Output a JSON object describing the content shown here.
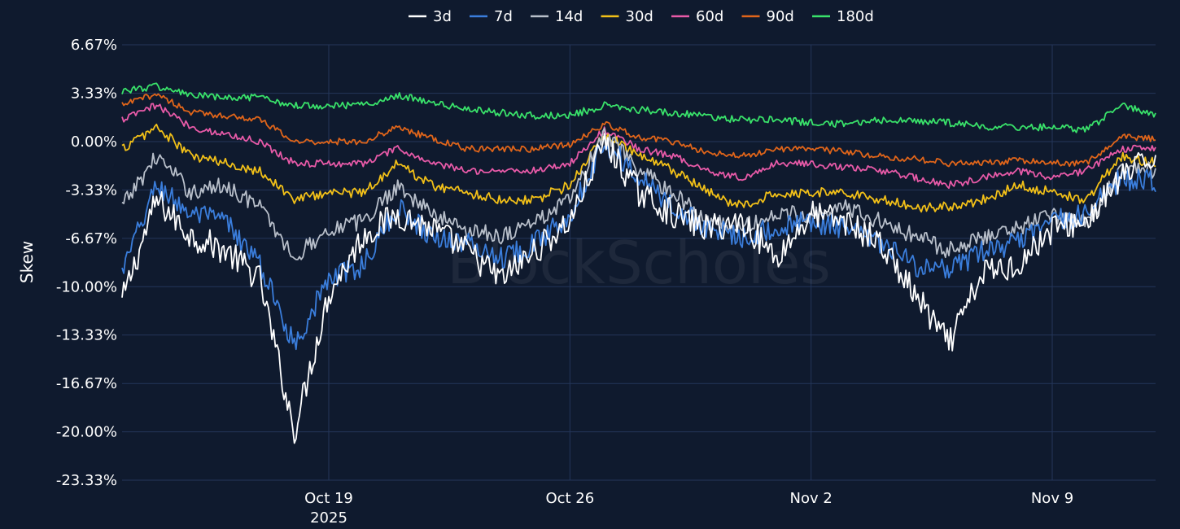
{
  "chart_data": {
    "type": "line",
    "ylabel": "Skew",
    "watermark": "BlockScholes",
    "x_range": [
      "2025-10-13",
      "2025-11-12"
    ],
    "x_ticks": [
      {
        "date": "2025-10-19",
        "label": "Oct 19",
        "sublabel": "2025"
      },
      {
        "date": "2025-10-26",
        "label": "Oct 26",
        "sublabel": ""
      },
      {
        "date": "2025-11-02",
        "label": "Nov 2",
        "sublabel": ""
      },
      {
        "date": "2025-11-09",
        "label": "Nov 9",
        "sublabel": ""
      }
    ],
    "ylim": [
      -23.33,
      6.67
    ],
    "y_ticks": [
      6.67,
      3.33,
      0.0,
      -3.33,
      -6.67,
      -10.0,
      -13.33,
      -16.67,
      -20.0,
      -23.33
    ],
    "y_tick_labels": [
      "6.67%",
      "3.33%",
      "0.00%",
      "-3.33%",
      "-6.67%",
      "-10.00%",
      "-13.33%",
      "-16.67%",
      "-20.00%",
      "-23.33%"
    ],
    "grid": true,
    "legend_position": "top",
    "x": [
      "2025-10-13",
      "2025-10-14",
      "2025-10-15",
      "2025-10-16",
      "2025-10-17",
      "2025-10-18",
      "2025-10-19",
      "2025-10-20",
      "2025-10-21",
      "2025-10-22",
      "2025-10-23",
      "2025-10-24",
      "2025-10-25",
      "2025-10-26",
      "2025-10-27",
      "2025-10-28",
      "2025-10-29",
      "2025-10-30",
      "2025-10-31",
      "2025-11-01",
      "2025-11-02",
      "2025-11-03",
      "2025-11-04",
      "2025-11-05",
      "2025-11-06",
      "2025-11-07",
      "2025-11-08",
      "2025-11-09",
      "2025-11-10",
      "2025-11-11",
      "2025-11-12"
    ],
    "series": [
      {
        "name": "3d",
        "color": "#ffffff",
        "values": [
          -11.0,
          -4.0,
          -6.5,
          -7.5,
          -9.5,
          -20.0,
          -10.5,
          -6.5,
          -5.0,
          -6.0,
          -7.5,
          -9.5,
          -7.5,
          -5.5,
          0.0,
          -3.5,
          -5.0,
          -6.0,
          -5.5,
          -8.0,
          -5.0,
          -5.5,
          -7.0,
          -10.5,
          -14.0,
          -9.0,
          -8.5,
          -6.0,
          -5.5,
          -2.5,
          -1.0
        ]
      },
      {
        "name": "7d",
        "color": "#3a7ddb",
        "values": [
          -9.0,
          -3.0,
          -5.0,
          -5.5,
          -8.5,
          -14.0,
          -9.5,
          -8.5,
          -4.5,
          -6.5,
          -7.0,
          -8.0,
          -7.0,
          -5.0,
          0.0,
          -2.5,
          -4.5,
          -6.0,
          -6.5,
          -6.0,
          -5.5,
          -6.0,
          -7.0,
          -8.5,
          -9.0,
          -7.5,
          -7.0,
          -5.5,
          -5.0,
          -2.5,
          -2.8
        ]
      },
      {
        "name": "14d",
        "color": "#b8bfca",
        "values": [
          -4.5,
          -1.0,
          -3.5,
          -3.0,
          -4.5,
          -8.0,
          -6.0,
          -5.5,
          -3.0,
          -5.0,
          -6.0,
          -6.5,
          -5.5,
          -4.0,
          0.5,
          -2.0,
          -3.5,
          -5.5,
          -6.0,
          -5.0,
          -5.0,
          -4.5,
          -5.5,
          -6.5,
          -7.5,
          -6.5,
          -6.0,
          -5.0,
          -5.5,
          -2.0,
          -2.0
        ]
      },
      {
        "name": "30d",
        "color": "#f2c018",
        "values": [
          -0.5,
          1.0,
          -1.0,
          -1.5,
          -2.0,
          -4.0,
          -3.5,
          -3.5,
          -1.5,
          -3.0,
          -3.5,
          -4.0,
          -4.0,
          -3.0,
          0.5,
          -1.0,
          -2.0,
          -3.5,
          -4.5,
          -3.5,
          -3.5,
          -3.5,
          -4.0,
          -4.5,
          -4.5,
          -4.0,
          -3.0,
          -3.5,
          -4.0,
          -1.0,
          -1.5
        ]
      },
      {
        "name": "60d",
        "color": "#e85aa8",
        "values": [
          1.5,
          2.5,
          1.0,
          0.5,
          0.0,
          -1.5,
          -1.5,
          -1.5,
          -0.5,
          -1.5,
          -2.0,
          -2.0,
          -2.0,
          -1.5,
          0.8,
          -0.5,
          -1.0,
          -2.0,
          -2.5,
          -1.5,
          -1.5,
          -1.8,
          -2.0,
          -2.5,
          -3.0,
          -2.5,
          -2.0,
          -2.5,
          -2.0,
          -0.5,
          -0.5
        ]
      },
      {
        "name": "90d",
        "color": "#e0651a",
        "values": [
          2.5,
          3.3,
          2.0,
          1.8,
          1.5,
          0.0,
          0.0,
          0.0,
          1.0,
          0.2,
          -0.5,
          -0.5,
          -0.5,
          -0.2,
          1.2,
          0.3,
          0.0,
          -0.8,
          -1.0,
          -0.5,
          -0.5,
          -0.7,
          -1.0,
          -1.2,
          -1.5,
          -1.5,
          -1.3,
          -1.5,
          -1.5,
          0.3,
          0.2
        ]
      },
      {
        "name": "180d",
        "color": "#39e26a",
        "values": [
          3.5,
          3.8,
          3.2,
          3.0,
          3.0,
          2.5,
          2.5,
          2.5,
          3.2,
          2.7,
          2.2,
          2.0,
          1.8,
          1.8,
          2.5,
          2.2,
          2.0,
          1.7,
          1.5,
          1.5,
          1.3,
          1.2,
          1.5,
          1.4,
          1.3,
          1.0,
          1.0,
          1.0,
          0.8,
          2.5,
          1.8
        ]
      }
    ]
  }
}
